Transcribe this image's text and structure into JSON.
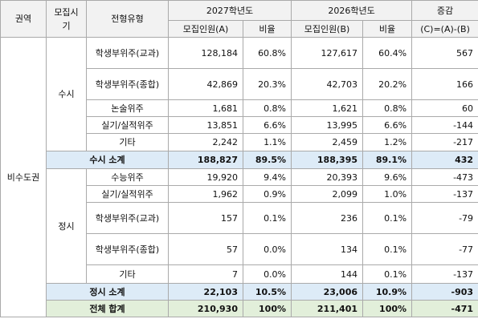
{
  "header": {
    "region": "권역",
    "period": "모집시기",
    "type": "전형유형",
    "year2027": "2027학년도",
    "year2026": "2026학년도",
    "change": "증감",
    "recruitA": "모집인원(A)",
    "ratio": "비율",
    "recruitB": "모집인원(B)",
    "ratio2": "비율",
    "changeFormula": "(C)=(A)-(B)"
  },
  "region": "비수도권",
  "susi": {
    "label": "수시",
    "rows": [
      {
        "type": "학생부위주(교과)",
        "a": "128,184",
        "ar": "60.8%",
        "b": "127,617",
        "br": "60.4%",
        "c": "567"
      },
      {
        "type": "학생부위주(종합)",
        "a": "42,869",
        "ar": "20.3%",
        "b": "42,703",
        "br": "20.2%",
        "c": "166"
      },
      {
        "type": "논술위주",
        "a": "1,681",
        "ar": "0.8%",
        "b": "1,621",
        "br": "0.8%",
        "c": "60"
      },
      {
        "type": "실기/실적위주",
        "a": "13,851",
        "ar": "6.6%",
        "b": "13,995",
        "br": "6.6%",
        "c": "-144"
      },
      {
        "type": "기타",
        "a": "2,242",
        "ar": "1.1%",
        "b": "2,459",
        "br": "1.2%",
        "c": "-217"
      }
    ],
    "subtotal": {
      "label": "수시 소계",
      "a": "188,827",
      "ar": "89.5%",
      "b": "188,395",
      "br": "89.1%",
      "c": "432"
    }
  },
  "jeongsi": {
    "label": "정시",
    "rows": [
      {
        "type": "수능위주",
        "a": "19,920",
        "ar": "9.4%",
        "b": "20,393",
        "br": "9.6%",
        "c": "-473"
      },
      {
        "type": "실기/실적위주",
        "a": "1,962",
        "ar": "0.9%",
        "b": "2,099",
        "br": "1.0%",
        "c": "-137"
      },
      {
        "type": "학생부위주(교과)",
        "a": "157",
        "ar": "0.1%",
        "b": "236",
        "br": "0.1%",
        "c": "-79"
      },
      {
        "type": "학생부위주(종합)",
        "a": "57",
        "ar": "0.0%",
        "b": "134",
        "br": "0.1%",
        "c": "-77"
      },
      {
        "type": "기타",
        "a": "7",
        "ar": "0.0%",
        "b": "144",
        "br": "0.1%",
        "c": "-137"
      }
    ],
    "subtotal": {
      "label": "정시 소계",
      "a": "22,103",
      "ar": "10.5%",
      "b": "23,006",
      "br": "10.9%",
      "c": "-903"
    }
  },
  "total": {
    "label": "전체 합계",
    "a": "210,930",
    "ar": "100%",
    "b": "211,401",
    "br": "100%",
    "c": "-471"
  }
}
